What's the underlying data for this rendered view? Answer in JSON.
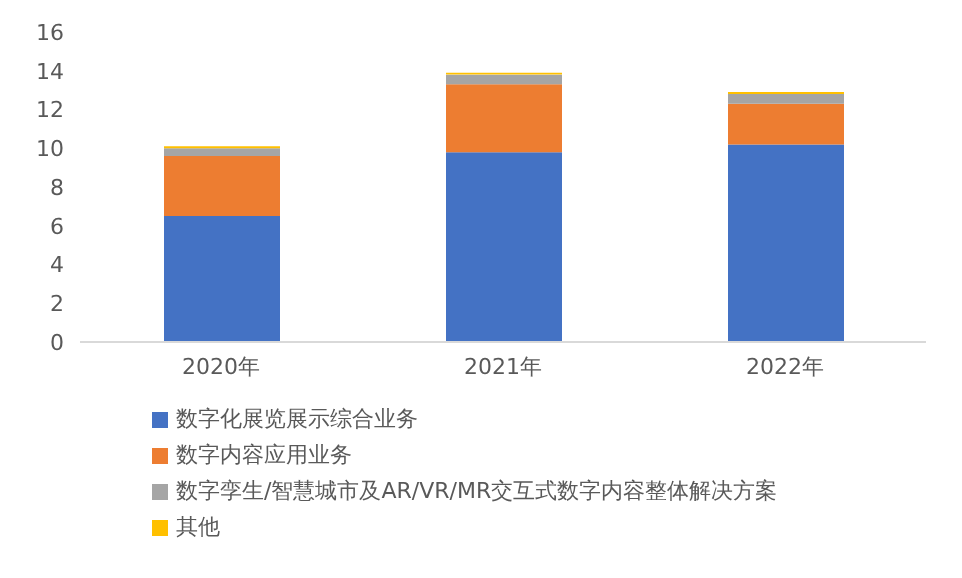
{
  "chart_data": {
    "type": "bar",
    "stacked": true,
    "categories": [
      "2020年",
      "2021年",
      "2022年"
    ],
    "series": [
      {
        "name": "数字化展览展示综合业务",
        "color": "#4472c4",
        "values": [
          6.5,
          9.8,
          10.2
        ]
      },
      {
        "name": "数字内容应用业务",
        "color": "#ed7d31",
        "values": [
          3.1,
          3.5,
          2.1
        ]
      },
      {
        "name": "数字孪生/智慧城市及AR/VR/MR交互式数字内容整体解决方案",
        "color": "#a5a5a5",
        "values": [
          0.4,
          0.5,
          0.5
        ]
      },
      {
        "name": "其他",
        "color": "#ffc000",
        "values": [
          0.1,
          0.1,
          0.1
        ]
      }
    ],
    "ylim": [
      0,
      16
    ],
    "yticks": [
      0,
      2,
      4,
      6,
      8,
      10,
      12,
      14,
      16
    ],
    "grid": false,
    "legend": "bottom"
  }
}
